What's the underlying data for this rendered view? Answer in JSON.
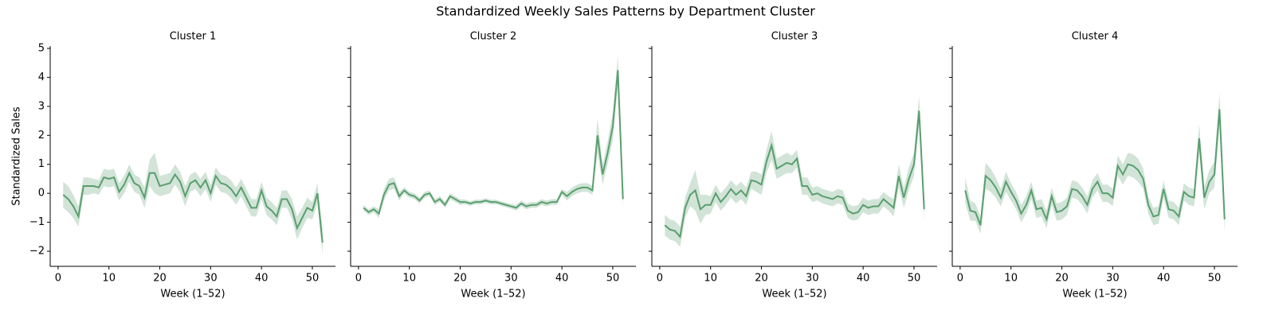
{
  "title": "Standardized Weekly Sales Patterns by Department Cluster",
  "chart_data": [
    {
      "type": "line",
      "title": "Cluster 1",
      "xlabel": "Week (1–52)",
      "ylabel": "Standardized Sales",
      "ytick_labels": true,
      "color": "#5a9e6f",
      "xlim": [
        -1.55,
        54.55
      ],
      "ylim": [
        -2.52,
        5.08
      ],
      "xticks": [
        0,
        10,
        20,
        30,
        40,
        50
      ],
      "yticks": [
        {
          "value": -2,
          "label": "−2"
        },
        {
          "value": -1,
          "label": "−1"
        },
        0,
        1,
        2,
        3,
        4,
        5
      ],
      "x": [
        1,
        2,
        3,
        4,
        5,
        6,
        7,
        8,
        9,
        10,
        11,
        12,
        13,
        14,
        15,
        16,
        17,
        18,
        19,
        20,
        21,
        22,
        23,
        24,
        25,
        26,
        27,
        28,
        29,
        30,
        31,
        32,
        33,
        34,
        35,
        36,
        37,
        38,
        39,
        40,
        41,
        42,
        43,
        44,
        45,
        46,
        47,
        48,
        49,
        50,
        51,
        52
      ],
      "values": [
        -0.05,
        -0.2,
        -0.45,
        -0.8,
        0.25,
        0.25,
        0.25,
        0.2,
        0.55,
        0.5,
        0.55,
        0.05,
        0.3,
        0.7,
        0.35,
        0.25,
        -0.15,
        0.7,
        0.7,
        0.25,
        0.3,
        0.35,
        0.65,
        0.4,
        -0.1,
        0.35,
        0.45,
        0.2,
        0.45,
        0,
        0.6,
        0.35,
        0.3,
        0.15,
        -0.1,
        0.2,
        -0.15,
        -0.5,
        -0.5,
        0.1,
        -0.45,
        -0.6,
        -0.8,
        -0.2,
        -0.2,
        -0.55,
        -1.2,
        -0.85,
        -0.5,
        -0.6,
        0,
        -1.7
      ],
      "errors": [
        0.45,
        0.45,
        0.4,
        0.35,
        0.3,
        0.3,
        0.25,
        0.25,
        0.3,
        0.3,
        0.3,
        0.3,
        0.3,
        0.3,
        0.3,
        0.3,
        0.35,
        0.45,
        0.7,
        0.35,
        0.35,
        0.35,
        0.35,
        0.35,
        0.35,
        0.3,
        0.3,
        0.3,
        0.3,
        0.3,
        0.3,
        0.3,
        0.3,
        0.3,
        0.3,
        0.3,
        0.3,
        0.3,
        0.3,
        0.3,
        0.3,
        0.3,
        0.3,
        0.3,
        0.3,
        0.35,
        0.4,
        0.35,
        0.35,
        0.3,
        0.35,
        0.45
      ]
    },
    {
      "type": "line",
      "title": "Cluster 2",
      "xlabel": "Week (1–52)",
      "ytick_labels": false,
      "color": "#5a9e6f",
      "xlim": [
        -1.55,
        54.55
      ],
      "ylim": [
        -2.52,
        5.08
      ],
      "xticks": [
        0,
        10,
        20,
        30,
        40,
        50
      ],
      "yticks": [
        -2,
        -1,
        0,
        1,
        2,
        3,
        4,
        5
      ],
      "x": [
        1,
        2,
        3,
        4,
        5,
        6,
        7,
        8,
        9,
        10,
        11,
        12,
        13,
        14,
        15,
        16,
        17,
        18,
        19,
        20,
        21,
        22,
        23,
        24,
        25,
        26,
        27,
        28,
        29,
        30,
        31,
        32,
        33,
        34,
        35,
        36,
        37,
        38,
        39,
        40,
        41,
        42,
        43,
        44,
        45,
        46,
        47,
        48,
        49,
        50,
        51,
        52
      ],
      "values": [
        -0.5,
        -0.65,
        -0.55,
        -0.7,
        -0.05,
        0.3,
        0.35,
        -0.1,
        0.1,
        -0.05,
        -0.1,
        -0.25,
        -0.05,
        0,
        -0.3,
        -0.2,
        -0.4,
        -0.1,
        -0.2,
        -0.3,
        -0.3,
        -0.35,
        -0.3,
        -0.3,
        -0.25,
        -0.3,
        -0.3,
        -0.35,
        -0.4,
        -0.45,
        -0.5,
        -0.35,
        -0.45,
        -0.4,
        -0.4,
        -0.3,
        -0.35,
        -0.3,
        -0.3,
        0.05,
        -0.1,
        0.05,
        0.15,
        0.2,
        0.2,
        0.1,
        2.0,
        0.65,
        1.4,
        2.3,
        4.25,
        -0.2
      ],
      "errors": [
        0.1,
        0.1,
        0.1,
        0.15,
        0.2,
        0.2,
        0.2,
        0.15,
        0.1,
        0.1,
        0.1,
        0.1,
        0.1,
        0.1,
        0.1,
        0.1,
        0.1,
        0.1,
        0.1,
        0.1,
        0.08,
        0.08,
        0.08,
        0.08,
        0.08,
        0.08,
        0.08,
        0.08,
        0.08,
        0.08,
        0.1,
        0.1,
        0.1,
        0.1,
        0.1,
        0.1,
        0.1,
        0.1,
        0.1,
        0.1,
        0.15,
        0.15,
        0.15,
        0.15,
        0.15,
        0.15,
        0.6,
        0.35,
        0.4,
        0.5,
        0.5,
        0.35
      ]
    },
    {
      "type": "line",
      "title": "Cluster 3",
      "xlabel": "Week (1–52)",
      "ytick_labels": false,
      "color": "#5a9e6f",
      "xlim": [
        -1.55,
        54.55
      ],
      "ylim": [
        -2.52,
        5.08
      ],
      "xticks": [
        0,
        10,
        20,
        30,
        40,
        50
      ],
      "yticks": [
        -2,
        -1,
        0,
        1,
        2,
        3,
        4,
        5
      ],
      "x": [
        1,
        2,
        3,
        4,
        5,
        6,
        7,
        8,
        9,
        10,
        11,
        12,
        13,
        14,
        15,
        16,
        17,
        18,
        19,
        20,
        21,
        22,
        23,
        24,
        25,
        26,
        27,
        28,
        29,
        30,
        31,
        32,
        33,
        34,
        35,
        36,
        37,
        38,
        39,
        40,
        41,
        42,
        43,
        44,
        45,
        46,
        47,
        48,
        49,
        50,
        51,
        52
      ],
      "values": [
        -1.1,
        -1.25,
        -1.3,
        -1.5,
        -0.5,
        -0.05,
        0.1,
        -0.55,
        -0.4,
        -0.4,
        0,
        -0.3,
        -0.1,
        0.15,
        -0.05,
        0.1,
        -0.1,
        0.45,
        0.4,
        0.3,
        1.1,
        1.65,
        0.85,
        0.95,
        1.05,
        1.0,
        1.2,
        0.25,
        0.25,
        -0.05,
        0,
        -0.1,
        -0.15,
        -0.2,
        -0.1,
        -0.15,
        -0.6,
        -0.7,
        -0.65,
        -0.4,
        -0.5,
        -0.45,
        -0.45,
        -0.2,
        -0.35,
        -0.5,
        0.6,
        -0.15,
        0.5,
        1.0,
        2.85,
        -0.55
      ],
      "errors": [
        0.35,
        0.35,
        0.35,
        0.35,
        0.35,
        0.4,
        0.7,
        0.5,
        0.35,
        0.3,
        0.3,
        0.3,
        0.3,
        0.3,
        0.3,
        0.3,
        0.3,
        0.3,
        0.35,
        0.35,
        0.4,
        0.5,
        0.35,
        0.35,
        0.35,
        0.3,
        0.3,
        0.3,
        0.3,
        0.25,
        0.25,
        0.25,
        0.25,
        0.25,
        0.25,
        0.25,
        0.25,
        0.25,
        0.25,
        0.25,
        0.25,
        0.25,
        0.25,
        0.25,
        0.25,
        0.3,
        0.4,
        0.35,
        0.4,
        0.4,
        0.5,
        0.4
      ]
    },
    {
      "type": "line",
      "title": "Cluster 4",
      "xlabel": "Week (1–52)",
      "ytick_labels": false,
      "color": "#5a9e6f",
      "xlim": [
        -1.55,
        54.55
      ],
      "ylim": [
        -2.52,
        5.08
      ],
      "xticks": [
        0,
        10,
        20,
        30,
        40,
        50
      ],
      "yticks": [
        -2,
        -1,
        0,
        1,
        2,
        3,
        4,
        5
      ],
      "x": [
        1,
        2,
        3,
        4,
        5,
        6,
        7,
        8,
        9,
        10,
        11,
        12,
        13,
        14,
        15,
        16,
        17,
        18,
        19,
        20,
        21,
        22,
        23,
        24,
        25,
        26,
        27,
        28,
        29,
        30,
        31,
        32,
        33,
        34,
        35,
        36,
        37,
        38,
        39,
        40,
        41,
        42,
        43,
        44,
        45,
        46,
        47,
        48,
        49,
        50,
        51,
        52
      ],
      "values": [
        0.1,
        -0.6,
        -0.65,
        -1.1,
        0.6,
        0.45,
        0.2,
        -0.15,
        0.4,
        0.05,
        -0.25,
        -0.7,
        -0.4,
        0.1,
        -0.55,
        -0.5,
        -0.9,
        -0.1,
        -0.65,
        -0.6,
        -0.45,
        0.15,
        0.1,
        -0.1,
        -0.4,
        0.15,
        0.4,
        0,
        0,
        -0.15,
        0.95,
        0.65,
        1.0,
        0.95,
        0.8,
        0.5,
        -0.4,
        -0.8,
        -0.75,
        0.15,
        -0.55,
        -0.6,
        -0.8,
        0.05,
        -0.1,
        -0.15,
        1.9,
        -0.15,
        0.4,
        0.65,
        2.9,
        -0.9
      ],
      "errors": [
        0.45,
        0.35,
        0.3,
        0.3,
        0.45,
        0.4,
        0.35,
        0.3,
        0.35,
        0.3,
        0.3,
        0.3,
        0.3,
        0.3,
        0.3,
        0.3,
        0.3,
        0.3,
        0.3,
        0.3,
        0.3,
        0.3,
        0.3,
        0.3,
        0.3,
        0.3,
        0.3,
        0.3,
        0.3,
        0.3,
        0.35,
        0.35,
        0.4,
        0.4,
        0.4,
        0.35,
        0.3,
        0.3,
        0.3,
        0.3,
        0.3,
        0.3,
        0.3,
        0.3,
        0.3,
        0.3,
        0.5,
        0.4,
        0.4,
        0.45,
        0.55,
        0.5
      ]
    }
  ]
}
